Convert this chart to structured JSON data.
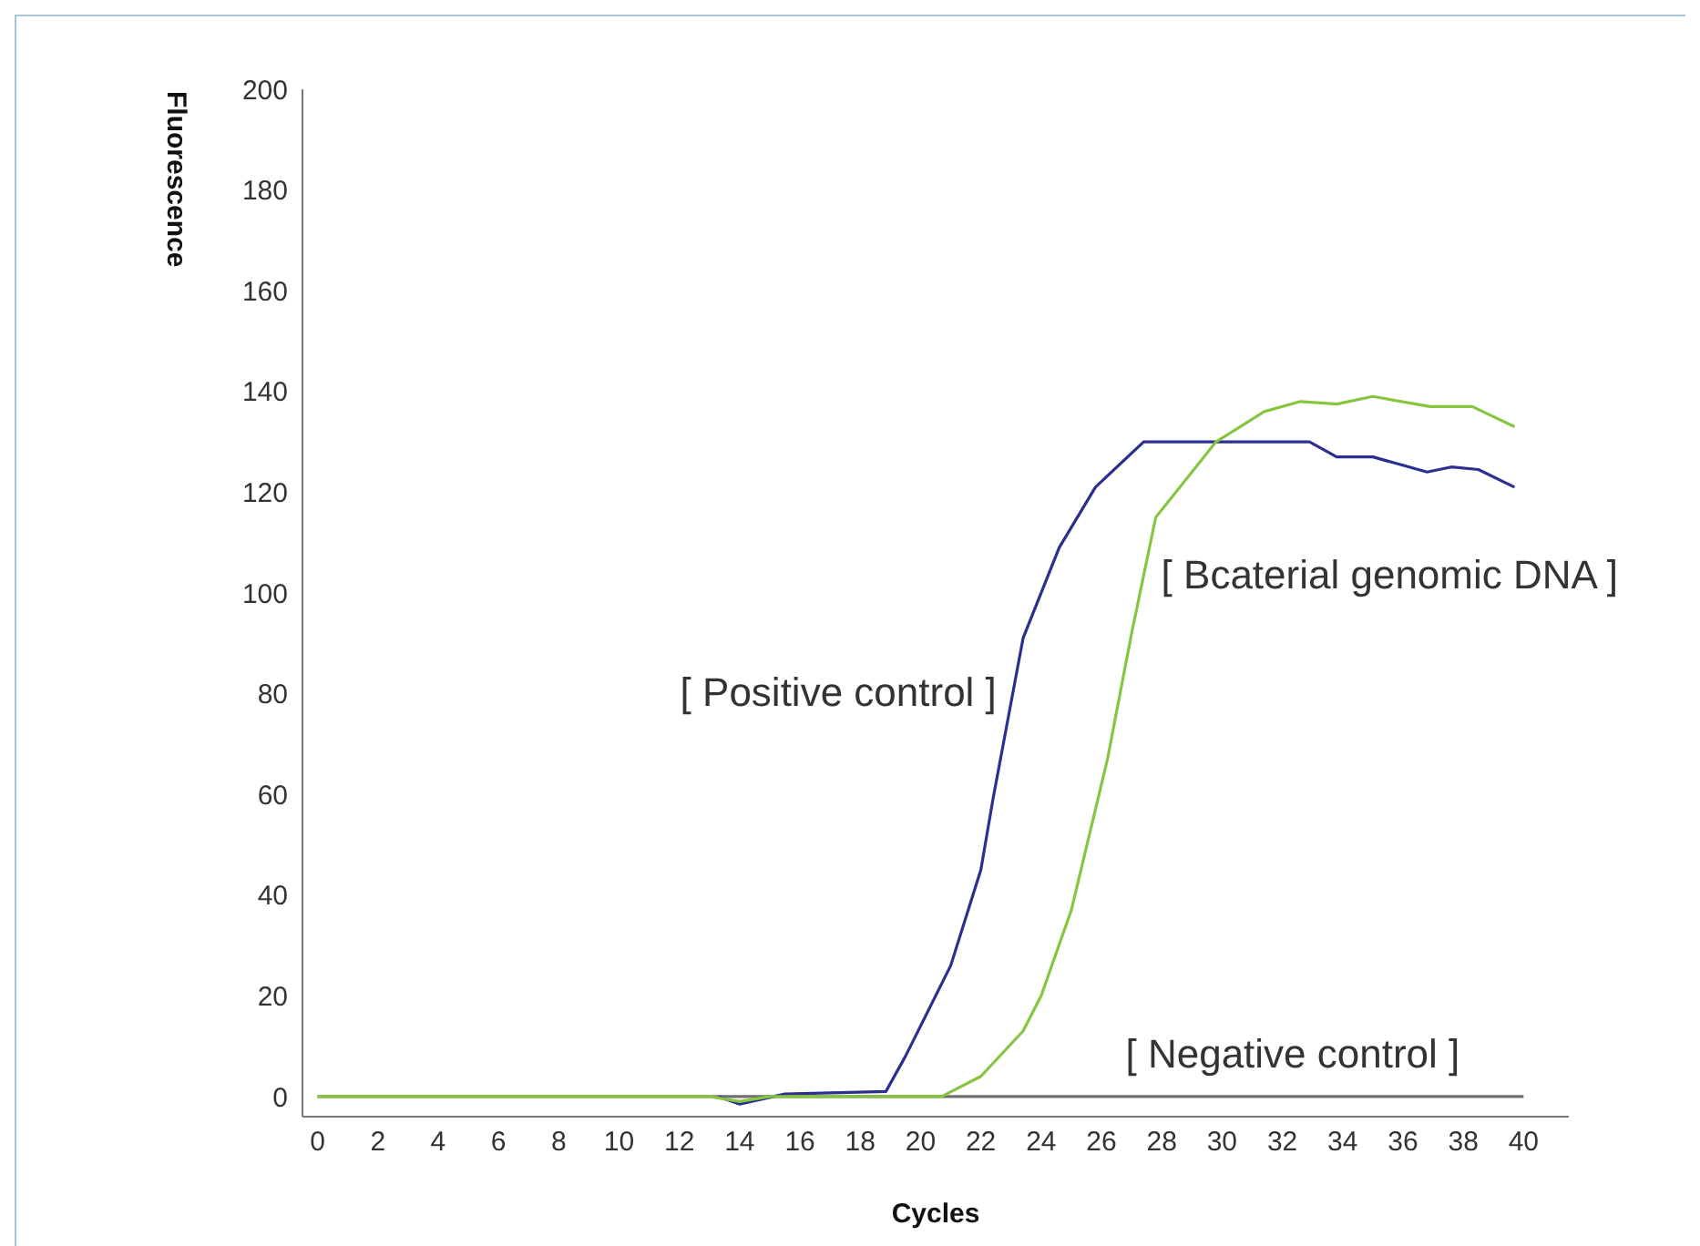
{
  "chart_data": {
    "type": "line",
    "xlabel": "Cycles",
    "ylabel": "Fluorescence",
    "xlim": [
      -0.5,
      41.5
    ],
    "xticks": [
      0,
      2,
      4,
      6,
      8,
      10,
      12,
      14,
      16,
      18,
      20,
      22,
      24,
      26,
      28,
      30,
      32,
      34,
      36,
      38,
      40
    ],
    "ylim": [
      -4,
      200
    ],
    "yticks": [
      0,
      20,
      40,
      60,
      80,
      100,
      120,
      140,
      160,
      180,
      200
    ],
    "grid": false,
    "legend": false,
    "marker": "none",
    "line_style": "solid",
    "series": [
      {
        "name": "[ Negative control ]",
        "color": "#6f6f6f",
        "x": [
          0,
          40
        ],
        "values": [
          0,
          0
        ]
      },
      {
        "name": "[ Positive control ]",
        "color": "#2b2f8f",
        "x": [
          13.3,
          14,
          15.5,
          18.85,
          19.5,
          21,
          22,
          22.4,
          23.4,
          24.6,
          25.8,
          27.4,
          32.9,
          33.8,
          35,
          36.8,
          37.6,
          38.5,
          39.7
        ],
        "values": [
          0,
          -1.5,
          0.5,
          1,
          8,
          26,
          45,
          59,
          91,
          109,
          121,
          130,
          130,
          127,
          127,
          124,
          125,
          124.5,
          121
        ]
      },
      {
        "name": "[ Bcaterial genomic DNA ]",
        "color": "#86c540",
        "x": [
          0,
          13,
          14,
          15,
          20.7,
          22,
          23.4,
          24,
          25,
          26.2,
          27,
          27.8,
          29.8,
          31.4,
          32.6,
          33.8,
          35,
          36.9,
          38.3,
          39.7
        ],
        "values": [
          0,
          0,
          -1,
          0,
          0,
          4,
          13,
          20,
          37,
          67,
          92,
          115,
          130,
          136,
          138,
          137.5,
          139,
          137,
          137,
          133
        ]
      }
    ]
  }
}
